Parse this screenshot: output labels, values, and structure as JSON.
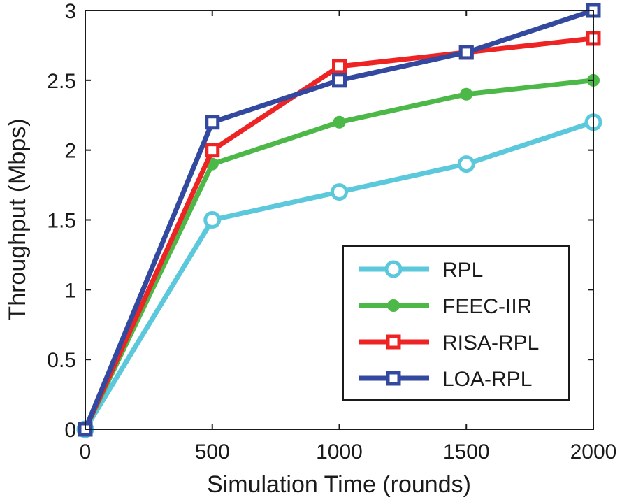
{
  "chart_data": {
    "type": "line",
    "xlabel": "Simulation Time (rounds)",
    "ylabel": "Throughput (Mbps)",
    "x": [
      0,
      500,
      1000,
      1500,
      2000
    ],
    "xlim": [
      0,
      2000
    ],
    "ylim": [
      0,
      3
    ],
    "xticks": [
      "0",
      "500",
      "1000",
      "1500",
      "2000"
    ],
    "yticks": [
      "0",
      "0.5",
      "1",
      "1.5",
      "2",
      "2.5",
      "3"
    ],
    "grid": false,
    "legend_position": "bottom-right",
    "series": [
      {
        "name": "RPL",
        "values": [
          0,
          1.5,
          1.7,
          1.9,
          2.2
        ],
        "color": "#5BC8DC",
        "marker": "open-circle"
      },
      {
        "name": "FEEC-IIR",
        "values": [
          0,
          1.9,
          2.2,
          2.4,
          2.5
        ],
        "color": "#4CB848",
        "marker": "filled-circle"
      },
      {
        "name": "RISA-RPL",
        "values": [
          0,
          2.0,
          2.6,
          2.7,
          2.8
        ],
        "color": "#EE2424",
        "marker": "open-square"
      },
      {
        "name": "LOA-RPL",
        "values": [
          0,
          2.2,
          2.5,
          2.7,
          3.0
        ],
        "color": "#3349A0",
        "marker": "open-square"
      }
    ]
  }
}
